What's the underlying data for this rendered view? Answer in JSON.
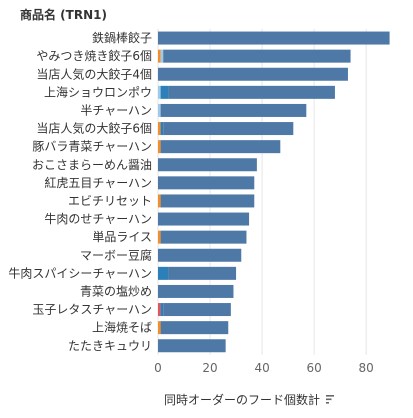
{
  "chart_data": {
    "type": "bar",
    "orientation": "horizontal",
    "stacked": true,
    "row_header": "商品名 (TRN1)",
    "xlabel": "同時オーダーのフード個数計",
    "ylabel": "",
    "xlim": [
      0,
      93
    ],
    "xticks": [
      0,
      20,
      40,
      60,
      80
    ],
    "grid": true,
    "sort_icon": "sort-descending-icon",
    "colors": {
      "main": "#4e79a7",
      "accent_blue": "#2c7fb8",
      "accent_orange": "#f28e2b",
      "accent_red": "#e15759",
      "accent_light": "#a0cbe8",
      "grid": "#e6e6e6"
    },
    "categories": [
      "鉄鍋棒餃子",
      "やみつき焼き餃子6個",
      "当店人気の大餃子4個",
      "上海ショウロンポウ",
      "半チャーハン",
      "当店人気の大餃子6個",
      "豚バラ青菜チャーハン",
      "おこさまらーめん醤油",
      "紅虎五目チャーハン",
      "エビチリセット",
      "牛肉のせチャーハン",
      "単品ライス",
      "マーボー豆腐",
      "牛肉スパイシーチャーハン",
      "青菜の塩炒め",
      "玉子レタスチャーハン",
      "上海焼そば",
      "たたきキュウリ"
    ],
    "segments": [
      [
        {
          "value": 89,
          "color": "main"
        }
      ],
      [
        {
          "value": 1,
          "color": "accent_orange"
        },
        {
          "value": 1,
          "color": "accent_light"
        },
        {
          "value": 72,
          "color": "main"
        }
      ],
      [
        {
          "value": 73,
          "color": "main"
        }
      ],
      [
        {
          "value": 1,
          "color": "accent_light"
        },
        {
          "value": 3,
          "color": "accent_blue"
        },
        {
          "value": 64,
          "color": "main"
        }
      ],
      [
        {
          "value": 1,
          "color": "accent_light"
        },
        {
          "value": 56,
          "color": "main"
        }
      ],
      [
        {
          "value": 1,
          "color": "accent_orange"
        },
        {
          "value": 1,
          "color": "accent_blue"
        },
        {
          "value": 50,
          "color": "main"
        }
      ],
      [
        {
          "value": 1,
          "color": "accent_orange"
        },
        {
          "value": 46,
          "color": "main"
        }
      ],
      [
        {
          "value": 38,
          "color": "main"
        }
      ],
      [
        {
          "value": 37,
          "color": "main"
        }
      ],
      [
        {
          "value": 1,
          "color": "accent_orange"
        },
        {
          "value": 36,
          "color": "main"
        }
      ],
      [
        {
          "value": 35,
          "color": "main"
        }
      ],
      [
        {
          "value": 1,
          "color": "accent_orange"
        },
        {
          "value": 33,
          "color": "main"
        }
      ],
      [
        {
          "value": 32,
          "color": "main"
        }
      ],
      [
        {
          "value": 4,
          "color": "accent_blue"
        },
        {
          "value": 26,
          "color": "main"
        }
      ],
      [
        {
          "value": 29,
          "color": "main"
        }
      ],
      [
        {
          "value": 1,
          "color": "accent_red"
        },
        {
          "value": 1,
          "color": "accent_blue"
        },
        {
          "value": 26,
          "color": "main"
        }
      ],
      [
        {
          "value": 1,
          "color": "accent_orange"
        },
        {
          "value": 26,
          "color": "main"
        }
      ],
      [
        {
          "value": 26,
          "color": "main"
        }
      ]
    ]
  }
}
